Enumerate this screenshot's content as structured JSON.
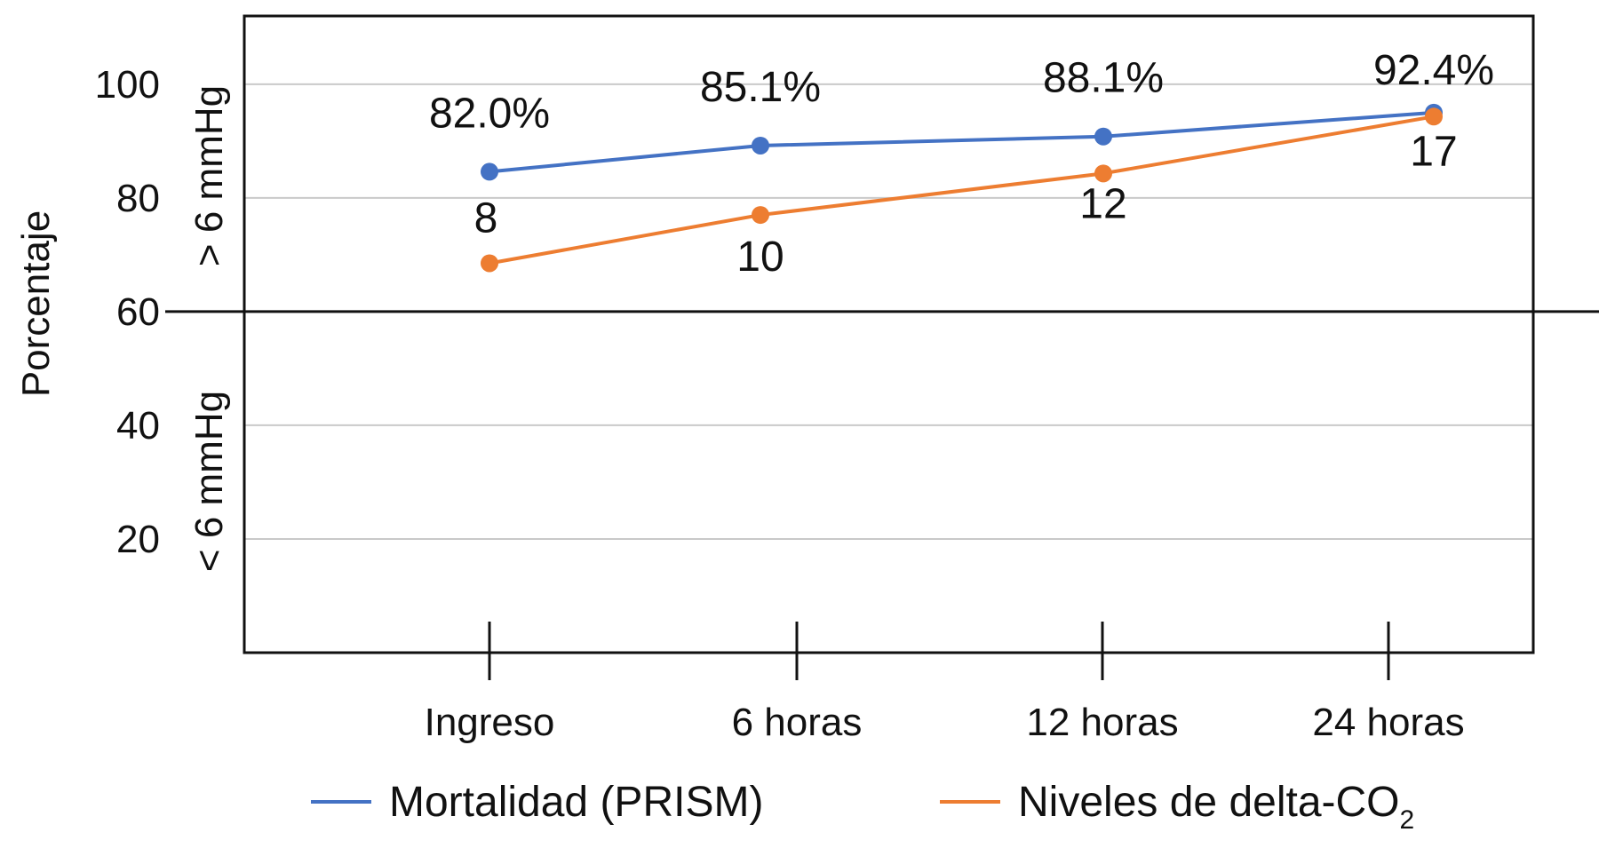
{
  "chart_data": {
    "type": "line",
    "title": "",
    "xlabel": "",
    "ylabel": "Porcentaje",
    "categories": [
      "Ingreso",
      "6 horas",
      "12 horas",
      "24 horas"
    ],
    "ylim": [
      0,
      112
    ],
    "yticks": [
      100,
      80,
      60,
      40,
      20
    ],
    "grid": true,
    "threshold_value": 60,
    "threshold_labels": {
      "upper": "> 6 mmHg",
      "lower": "< 6 mmHg"
    },
    "legend_position": "bottom",
    "series": [
      {
        "name": "Mortalidad (PRISM)",
        "color": "#4472c4",
        "values": [
          84.6,
          89.2,
          90.8,
          95.0
        ],
        "labels": [
          "82.0%",
          "85.1%",
          "88.1%",
          "92.4%"
        ]
      },
      {
        "name": "Niveles de delta-CO2",
        "legend_main": "Niveles de delta-CO",
        "legend_sub": "2",
        "color": "#ed7d31",
        "values": [
          68.5,
          77.0,
          84.3,
          94.3
        ],
        "labels": [
          "8",
          "10",
          "12",
          "17"
        ]
      }
    ]
  }
}
